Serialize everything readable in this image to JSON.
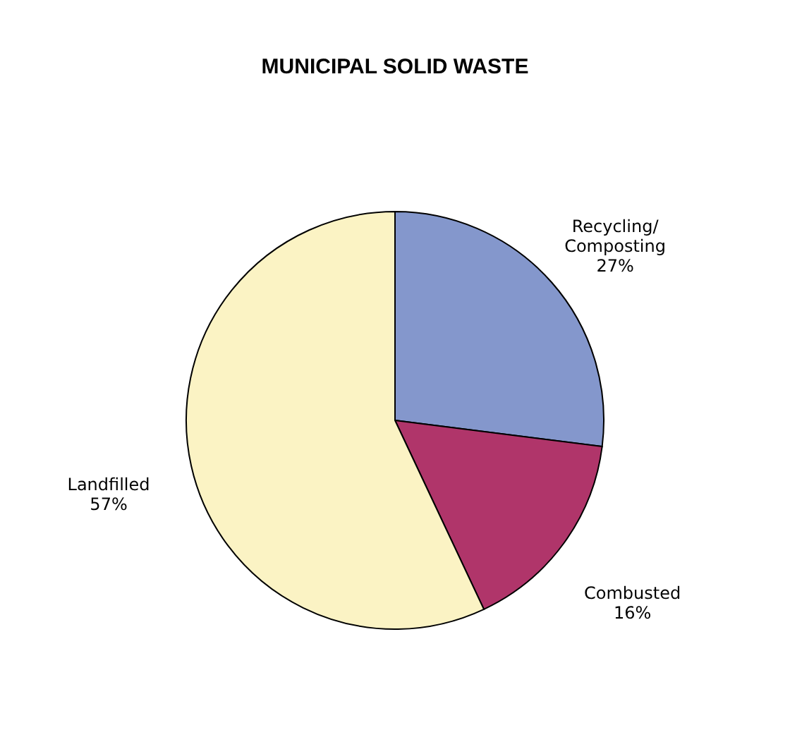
{
  "chart_data": {
    "type": "pie",
    "title": "MUNICIPAL SOLID WASTE",
    "categories": [
      "Recycling/ Composting",
      "Combusted",
      "Landfilled"
    ],
    "values": [
      27,
      16,
      57
    ],
    "colors": [
      "#8497cc",
      "#b0356a",
      "#fbf3c4"
    ],
    "value_labels": [
      "27%",
      "16%",
      "57%"
    ],
    "legend": false
  }
}
